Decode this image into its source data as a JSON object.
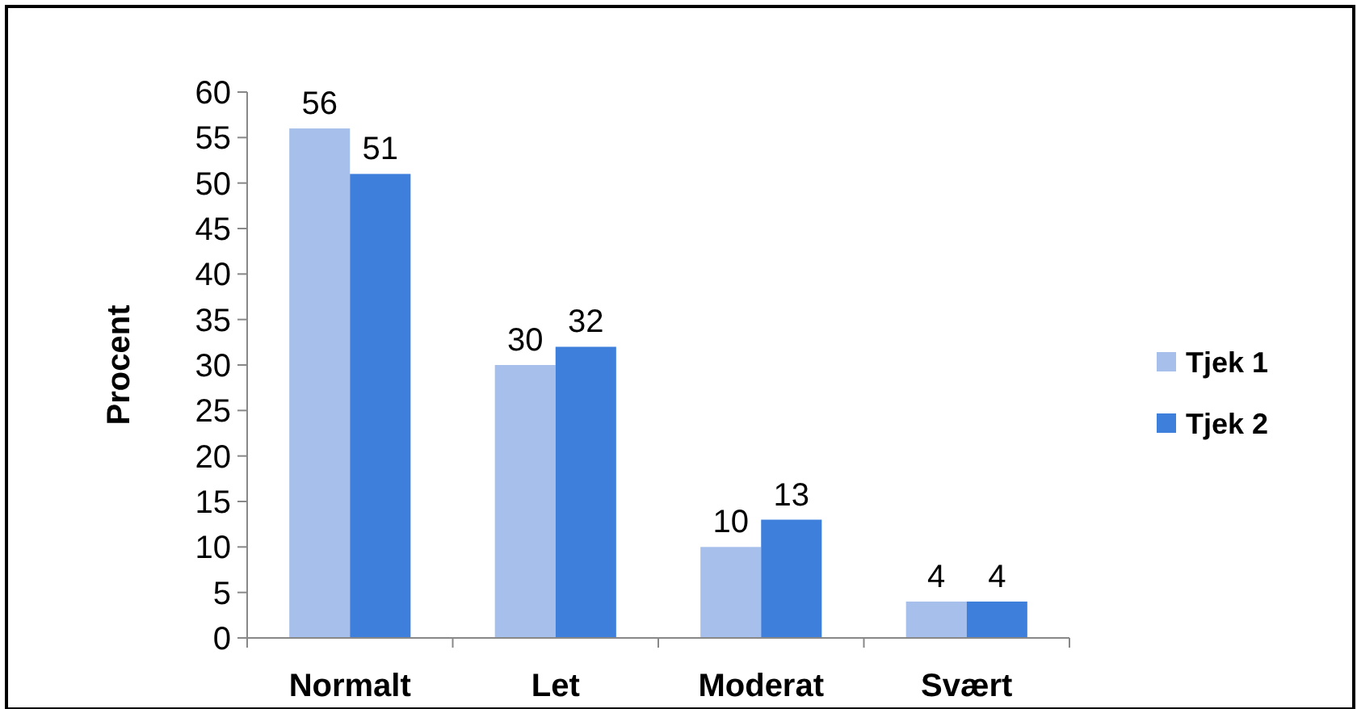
{
  "chart_data": {
    "type": "bar",
    "ylabel": "Procent",
    "categories": [
      "Normalt",
      "Let",
      "Moderat",
      "Svært"
    ],
    "series": [
      {
        "name": "Tjek 1",
        "color": "#a7bfeb",
        "values": [
          56,
          30,
          10,
          4
        ]
      },
      {
        "name": "Tjek 2",
        "color": "#3f7fdc",
        "values": [
          51,
          32,
          13,
          4
        ]
      }
    ],
    "ylim": [
      0,
      60
    ],
    "yticks": [
      0,
      5,
      10,
      15,
      20,
      25,
      30,
      35,
      40,
      45,
      50,
      55,
      60
    ],
    "data_labels": true,
    "legend": "right",
    "grid": false
  }
}
